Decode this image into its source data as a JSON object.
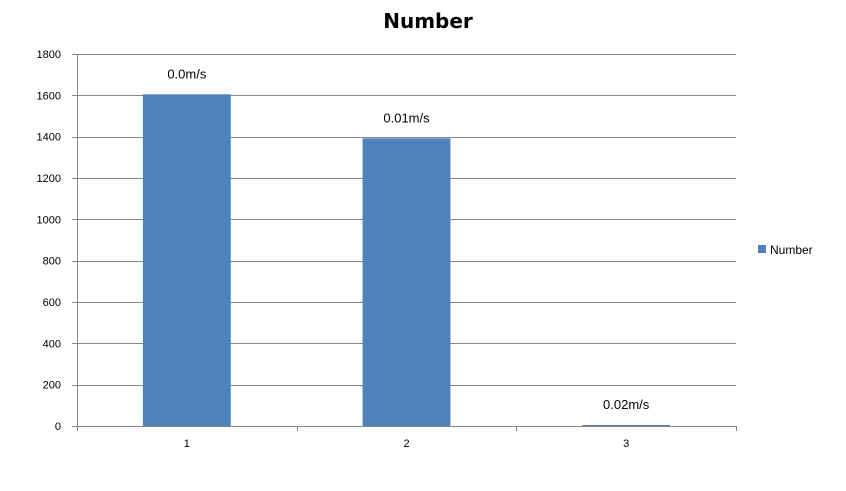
{
  "chart_data": {
    "type": "bar",
    "title": "Number",
    "xlabel": "",
    "ylabel": "",
    "categories": [
      "1",
      "2",
      "3"
    ],
    "series": [
      {
        "name": "Number",
        "values": [
          1605,
          1392,
          4
        ],
        "data_labels": [
          "0.0m/s",
          "0.01m/s",
          "0.02m/s"
        ]
      }
    ],
    "ylim": [
      0,
      1800
    ],
    "yticks": [
      "0",
      "200",
      "400",
      "600",
      "800",
      "1000",
      "1200",
      "1400",
      "1600",
      "1800"
    ],
    "grid": true,
    "legend_position": "right",
    "colors": {
      "bar": "#4f81bd",
      "grid": "#868686",
      "axis": "#868686"
    }
  }
}
